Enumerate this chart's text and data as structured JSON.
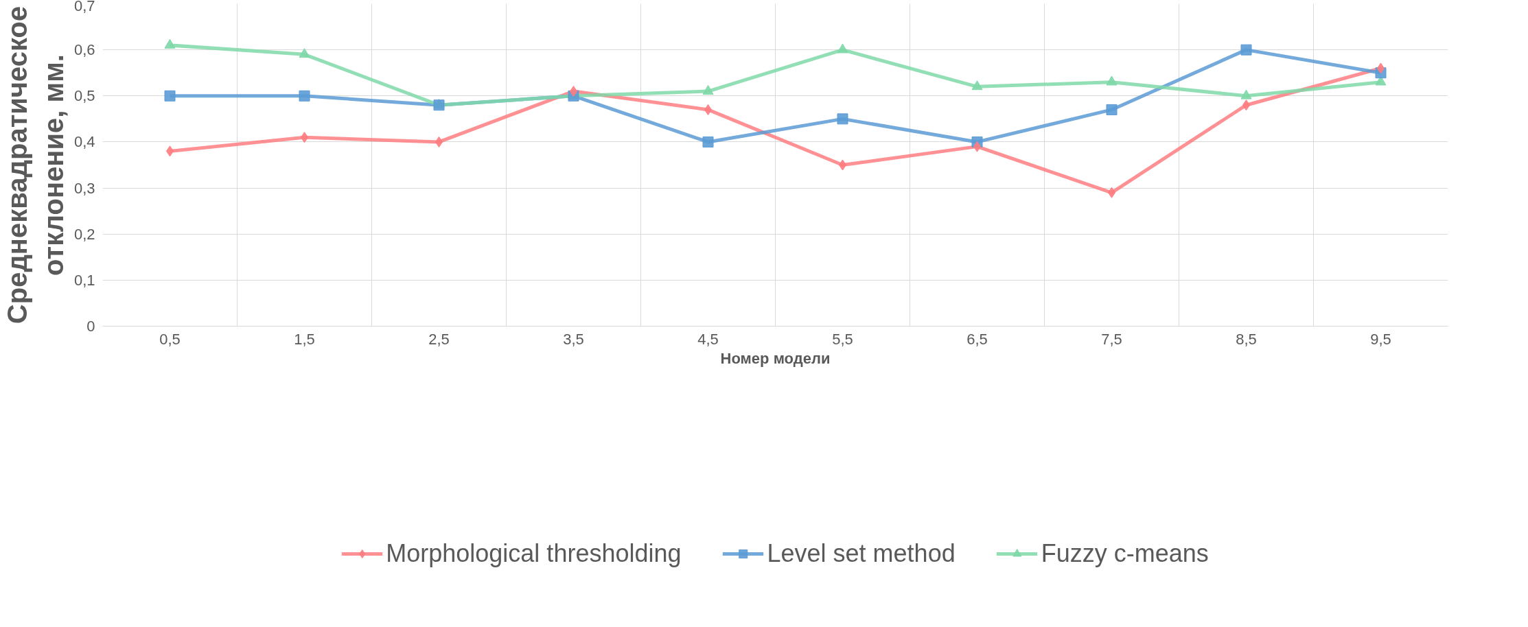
{
  "chart_data": {
    "type": "line",
    "xlabel": "Номер модели",
    "ylabel": "Среднеквадратическое отклонение, мм.",
    "categories": [
      "0,5",
      "1,5",
      "2,5",
      "3,5",
      "4,5",
      "5,5",
      "6,5",
      "7,5",
      "8,5",
      "9,5"
    ],
    "series": [
      {
        "name": "Morphological thresholding",
        "color": "#ff7c80",
        "marker": "diamond",
        "values": [
          0.38,
          0.41,
          0.4,
          0.51,
          0.47,
          0.35,
          0.39,
          0.29,
          0.48,
          0.56
        ]
      },
      {
        "name": "Level set method",
        "color": "#5b9bd5",
        "marker": "square",
        "values": [
          0.5,
          0.5,
          0.48,
          0.5,
          0.4,
          0.45,
          0.4,
          0.47,
          0.6,
          0.55
        ]
      },
      {
        "name": "Fuzzy c-means",
        "color": "#7fd8a8",
        "marker": "triangle",
        "values": [
          0.61,
          0.59,
          0.48,
          0.5,
          0.51,
          0.6,
          0.52,
          0.53,
          0.5,
          0.53
        ]
      }
    ],
    "ylim": [
      0,
      0.7
    ],
    "yticks": [
      0,
      {
        "value": 0.1,
        "label": "0,1"
      },
      {
        "value": 0.2,
        "label": "0,2"
      },
      {
        "value": 0.3,
        "label": "0,3"
      },
      {
        "value": 0.4,
        "label": "0,4"
      },
      {
        "value": 0.5,
        "label": "0,5"
      },
      {
        "value": 0.6,
        "label": "0,6"
      },
      {
        "value": 0.7,
        "label": "0,7"
      }
    ],
    "grid": true,
    "legend": "bottom",
    "line_style": "solid"
  }
}
